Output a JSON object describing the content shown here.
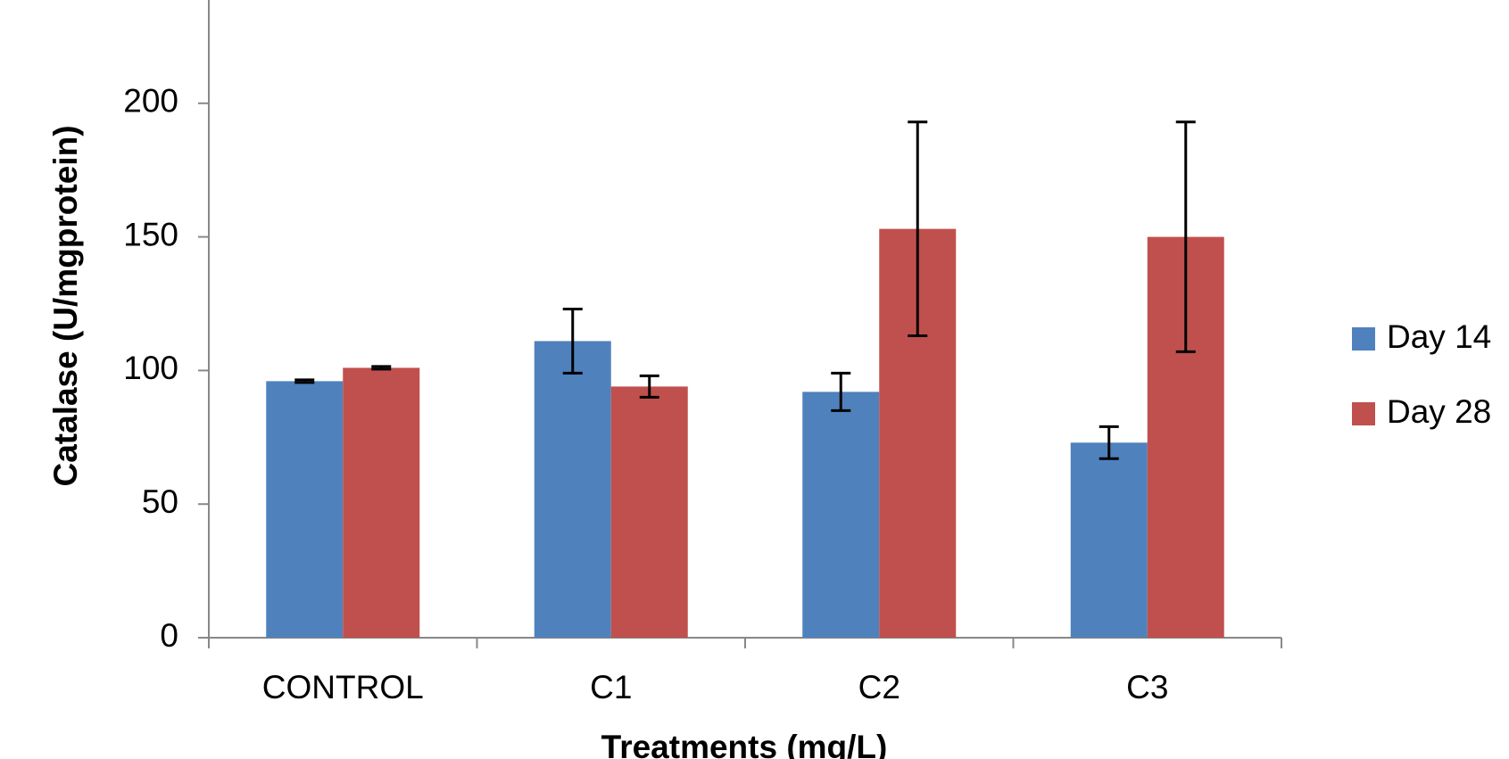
{
  "chart_data": {
    "type": "bar",
    "x_label": "Treatments (mg/L)",
    "y_label": "Catalase (U/mgprotein)",
    "categories": [
      "CONTROL",
      "C1",
      "C2",
      "C3"
    ],
    "series": [
      {
        "name": "Day 14",
        "color": "#4f81bd",
        "values": [
          96,
          111,
          92,
          73
        ],
        "errors": [
          0.5,
          12,
          7,
          6
        ]
      },
      {
        "name": "Day 28",
        "color": "#c0504d",
        "values": [
          101,
          94,
          153,
          150
        ],
        "errors": [
          0.5,
          4,
          40,
          43
        ]
      }
    ],
    "ylim": [
      0,
      240
    ],
    "yticks": [
      0,
      50,
      100,
      150,
      200
    ],
    "grid": false,
    "legend": "right"
  }
}
